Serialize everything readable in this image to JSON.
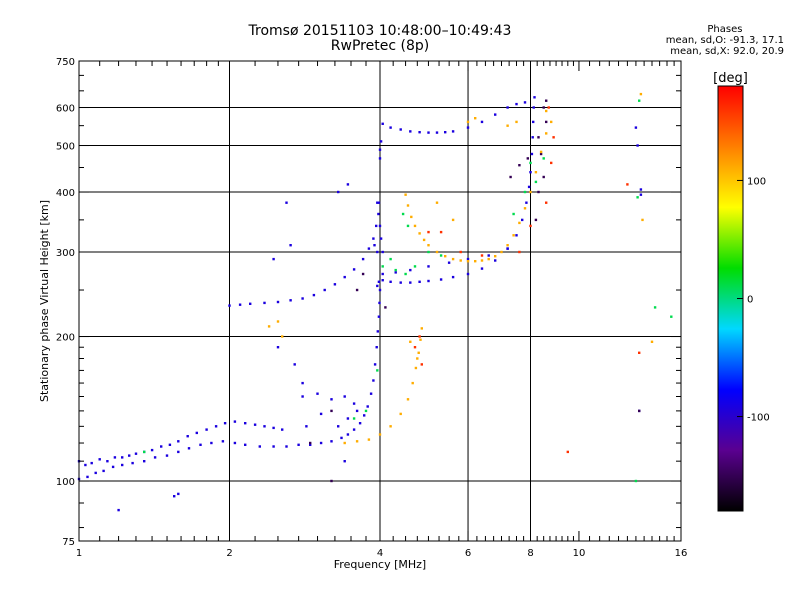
{
  "header": {
    "title_line1": "Tromsø 20151103 10:48:00–10:49:43",
    "title_line2": "RwPretec (8p)"
  },
  "phases": {
    "title": "Phases",
    "line_o": "mean, sd,O: -91.3, 17.1",
    "line_x": "mean, sd,X:  92.0, 20.9"
  },
  "chart_data": {
    "type": "scatter",
    "x_scale": "log",
    "y_scale": "log",
    "xlabel": "Frequency [MHz]",
    "ylabel": "Stationary phase Virtual Height [km]",
    "xlim": [
      1,
      16
    ],
    "ylim": [
      75,
      750
    ],
    "x_ticks": [
      1,
      2,
      4,
      6,
      8,
      10,
      16
    ],
    "x_tick_labels": [
      "1",
      "2",
      "4",
      "6",
      "8",
      "10",
      "16"
    ],
    "y_ticks": [
      75,
      100,
      200,
      300,
      400,
      500,
      600,
      750
    ],
    "y_tick_labels": [
      "75",
      "100",
      "200",
      "300",
      "400",
      "500",
      "600",
      "750"
    ],
    "grid_x": [
      2,
      4,
      6,
      8
    ],
    "grid_y": [
      100,
      200,
      300,
      400,
      500,
      600
    ],
    "grid": true,
    "colorbar": {
      "label": "[deg]",
      "range": [
        -180,
        180
      ],
      "ticks": [
        100,
        0,
        -100
      ],
      "tick_labels": [
        "100",
        "0",
        "-100"
      ],
      "stops": [
        "#000000",
        "#5a0090",
        "#0000ff",
        "#00d8ff",
        "#00dd00",
        "#ffff00",
        "#ff7f00",
        "#ff0000"
      ]
    },
    "series": [
      {
        "phase": -92,
        "points": [
          [
            1.0,
            110
          ],
          [
            1.03,
            108
          ],
          [
            1.06,
            109
          ],
          [
            1.1,
            111
          ],
          [
            1.14,
            110
          ],
          [
            1.18,
            112
          ],
          [
            1.22,
            112
          ],
          [
            1.26,
            113
          ],
          [
            1.3,
            114
          ],
          [
            1.35,
            115
          ],
          [
            1.4,
            116
          ],
          [
            1.46,
            118
          ],
          [
            1.52,
            119
          ],
          [
            1.58,
            121
          ],
          [
            1.65,
            124
          ],
          [
            1.72,
            126
          ],
          [
            1.8,
            128
          ],
          [
            1.88,
            130
          ],
          [
            1.96,
            132
          ],
          [
            2.05,
            133
          ],
          [
            2.15,
            132
          ],
          [
            2.25,
            131
          ],
          [
            2.35,
            130
          ],
          [
            2.45,
            129
          ],
          [
            2.55,
            128
          ],
          [
            1.0,
            101
          ],
          [
            1.04,
            102
          ],
          [
            1.08,
            104
          ],
          [
            1.12,
            105
          ],
          [
            1.17,
            107
          ],
          [
            1.22,
            108
          ],
          [
            1.28,
            109
          ],
          [
            1.35,
            110
          ],
          [
            1.42,
            112
          ],
          [
            1.5,
            113
          ],
          [
            1.58,
            115
          ],
          [
            1.66,
            117
          ],
          [
            1.75,
            119
          ],
          [
            1.84,
            120
          ],
          [
            1.94,
            121
          ],
          [
            2.05,
            120
          ],
          [
            2.15,
            119
          ],
          [
            2.3,
            118
          ],
          [
            2.45,
            118
          ],
          [
            2.6,
            118
          ],
          [
            2.75,
            119
          ],
          [
            2.9,
            119
          ],
          [
            3.05,
            120
          ],
          [
            3.2,
            121
          ],
          [
            3.35,
            123
          ],
          [
            3.45,
            125
          ],
          [
            3.55,
            128
          ],
          [
            3.65,
            132
          ],
          [
            3.72,
            137
          ],
          [
            3.78,
            143
          ],
          [
            3.84,
            152
          ],
          [
            3.88,
            162
          ],
          [
            3.91,
            175
          ],
          [
            3.94,
            190
          ],
          [
            3.96,
            205
          ],
          [
            3.98,
            220
          ],
          [
            3.99,
            235
          ],
          [
            4.0,
            250
          ],
          [
            3.95,
            255
          ],
          [
            3.98,
            260
          ],
          [
            2.0,
            232
          ],
          [
            2.1,
            233
          ],
          [
            2.2,
            234
          ],
          [
            2.35,
            235
          ],
          [
            2.5,
            236
          ],
          [
            2.65,
            238
          ],
          [
            2.8,
            240
          ],
          [
            2.95,
            244
          ],
          [
            3.1,
            250
          ],
          [
            3.25,
            257
          ],
          [
            3.4,
            266
          ],
          [
            3.55,
            276
          ],
          [
            3.7,
            290
          ],
          [
            3.8,
            305
          ],
          [
            3.88,
            320
          ],
          [
            3.93,
            340
          ],
          [
            3.97,
            360
          ],
          [
            3.98,
            380
          ],
          [
            3.95,
            300
          ],
          [
            3.9,
            310
          ],
          [
            4.05,
            262
          ],
          [
            4.2,
            260
          ],
          [
            4.4,
            259
          ],
          [
            4.6,
            259
          ],
          [
            4.8,
            260
          ],
          [
            5.0,
            261
          ],
          [
            5.3,
            263
          ],
          [
            5.6,
            266
          ],
          [
            6.0,
            270
          ],
          [
            6.4,
            277
          ],
          [
            6.8,
            288
          ],
          [
            7.2,
            305
          ],
          [
            7.5,
            325
          ],
          [
            7.7,
            350
          ],
          [
            7.85,
            380
          ],
          [
            7.95,
            410
          ],
          [
            8.0,
            440
          ],
          [
            8.05,
            480
          ],
          [
            8.08,
            520
          ],
          [
            8.1,
            560
          ],
          [
            8.12,
            600
          ],
          [
            8.15,
            630
          ],
          [
            4.05,
            270
          ],
          [
            4.3,
            272
          ],
          [
            4.6,
            275
          ],
          [
            5.0,
            280
          ],
          [
            5.5,
            285
          ],
          [
            6.0,
            290
          ],
          [
            6.6,
            295
          ],
          [
            7.2,
            305
          ],
          [
            4.0,
            470
          ],
          [
            4.0,
            490
          ],
          [
            4.02,
            510
          ],
          [
            4.05,
            555
          ],
          [
            4.2,
            545
          ],
          [
            4.4,
            540
          ],
          [
            4.6,
            535
          ],
          [
            4.8,
            533
          ],
          [
            5.0,
            532
          ],
          [
            5.2,
            532
          ],
          [
            5.4,
            533
          ],
          [
            5.6,
            535
          ],
          [
            6.0,
            545
          ],
          [
            6.4,
            560
          ],
          [
            6.8,
            580
          ],
          [
            7.2,
            600
          ],
          [
            7.5,
            610
          ],
          [
            7.8,
            615
          ],
          [
            3.3,
            400
          ],
          [
            3.45,
            415
          ],
          [
            2.6,
            380
          ],
          [
            2.65,
            310
          ],
          [
            2.45,
            290
          ],
          [
            3.95,
            380
          ],
          [
            4.0,
            340
          ],
          [
            4.02,
            320
          ],
          [
            4.05,
            300
          ],
          [
            2.5,
            190
          ],
          [
            2.7,
            175
          ],
          [
            2.8,
            160
          ],
          [
            3.0,
            152
          ],
          [
            3.2,
            148
          ],
          [
            2.8,
            150
          ],
          [
            3.05,
            138
          ],
          [
            2.85,
            130
          ],
          [
            3.4,
            150
          ],
          [
            3.55,
            145
          ],
          [
            3.6,
            140
          ],
          [
            3.3,
            130
          ],
          [
            3.45,
            135
          ],
          [
            1.2,
            87
          ],
          [
            1.55,
            93
          ],
          [
            1.58,
            94
          ],
          [
            3.4,
            110
          ],
          [
            13.1,
            500
          ],
          [
            13.3,
            405
          ],
          [
            13.3,
            395
          ],
          [
            13.2,
            140
          ],
          [
            13.0,
            545
          ]
        ]
      },
      {
        "phase": -150,
        "points": [
          [
            8.2,
            350
          ],
          [
            8.3,
            400
          ],
          [
            8.5,
            430
          ],
          [
            8.4,
            480
          ],
          [
            8.3,
            520
          ],
          [
            7.9,
            470
          ],
          [
            7.6,
            455
          ],
          [
            7.3,
            430
          ],
          [
            8.6,
            560
          ],
          [
            8.6,
            620
          ],
          [
            8.5,
            600
          ],
          [
            3.6,
            250
          ],
          [
            3.7,
            270
          ],
          [
            3.2,
            140
          ],
          [
            4.1,
            230
          ],
          [
            3.2,
            100
          ],
          [
            2.9,
            120
          ],
          [
            13.2,
            140
          ]
        ]
      },
      {
        "phase": 10,
        "points": [
          [
            3.55,
            135
          ],
          [
            3.75,
            140
          ],
          [
            3.95,
            170
          ],
          [
            4.05,
            280
          ],
          [
            4.2,
            290
          ],
          [
            4.3,
            275
          ],
          [
            4.5,
            270
          ],
          [
            5.0,
            300
          ],
          [
            5.3,
            295
          ],
          [
            4.45,
            360
          ],
          [
            4.55,
            340
          ],
          [
            7.8,
            400
          ],
          [
            8.0,
            460
          ],
          [
            8.2,
            420
          ],
          [
            1.35,
            115
          ],
          [
            4.7,
            280
          ],
          [
            7.4,
            360
          ],
          [
            8.5,
            470
          ],
          [
            14.2,
            230
          ],
          [
            13.0,
            100
          ],
          [
            15.3,
            220
          ],
          [
            13.2,
            620
          ],
          [
            13.1,
            390
          ]
        ]
      },
      {
        "phase": 110,
        "points": [
          [
            3.4,
            120
          ],
          [
            3.6,
            121
          ],
          [
            3.8,
            122
          ],
          [
            4.0,
            125
          ],
          [
            4.2,
            130
          ],
          [
            4.4,
            138
          ],
          [
            4.55,
            148
          ],
          [
            4.65,
            160
          ],
          [
            4.72,
            172
          ],
          [
            4.78,
            185
          ],
          [
            4.82,
            197
          ],
          [
            4.85,
            208
          ],
          [
            4.5,
            395
          ],
          [
            4.55,
            375
          ],
          [
            4.62,
            355
          ],
          [
            4.7,
            340
          ],
          [
            4.8,
            328
          ],
          [
            4.9,
            318
          ],
          [
            5.0,
            310
          ],
          [
            5.2,
            300
          ],
          [
            5.4,
            294
          ],
          [
            5.6,
            290
          ],
          [
            5.8,
            288
          ],
          [
            6.0,
            287
          ],
          [
            6.2,
            287
          ],
          [
            6.4,
            288
          ],
          [
            6.6,
            290
          ],
          [
            6.8,
            294
          ],
          [
            7.0,
            300
          ],
          [
            7.2,
            310
          ],
          [
            7.4,
            325
          ],
          [
            7.6,
            345
          ],
          [
            7.8,
            370
          ],
          [
            8.0,
            400
          ],
          [
            8.2,
            440
          ],
          [
            8.4,
            485
          ],
          [
            8.6,
            530
          ],
          [
            8.8,
            560
          ],
          [
            7.2,
            550
          ],
          [
            7.5,
            560
          ],
          [
            8.6,
            590
          ],
          [
            6.2,
            570
          ],
          [
            6.0,
            560
          ],
          [
            2.55,
            200
          ],
          [
            2.4,
            210
          ],
          [
            2.5,
            215
          ],
          [
            13.4,
            350
          ],
          [
            13.3,
            640
          ],
          [
            14.0,
            195
          ],
          [
            4.6,
            195
          ],
          [
            4.75,
            180
          ],
          [
            5.2,
            380
          ],
          [
            5.6,
            350
          ]
        ]
      },
      {
        "phase": 160,
        "points": [
          [
            4.7,
            190
          ],
          [
            4.8,
            200
          ],
          [
            4.85,
            175
          ],
          [
            5.0,
            330
          ],
          [
            5.3,
            330
          ],
          [
            5.8,
            300
          ],
          [
            6.4,
            295
          ],
          [
            7.6,
            300
          ],
          [
            8.0,
            340
          ],
          [
            8.6,
            380
          ],
          [
            8.8,
            460
          ],
          [
            8.9,
            520
          ],
          [
            8.7,
            600
          ],
          [
            13.2,
            185
          ],
          [
            12.5,
            415
          ],
          [
            9.5,
            115
          ]
        ]
      }
    ]
  }
}
